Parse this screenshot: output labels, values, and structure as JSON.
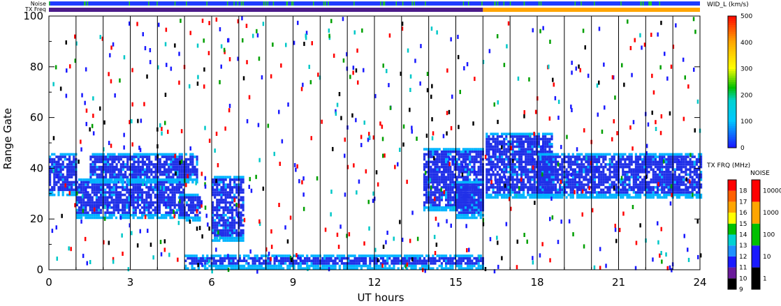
{
  "header": {
    "noise_label": "Noise",
    "txfreq_label": "TX Freq"
  },
  "chart_data": {
    "type": "heatmap",
    "xlabel": "UT hours",
    "ylabel": "Range Gate",
    "xlim": [
      0,
      24
    ],
    "ylim": [
      0,
      100
    ],
    "x_ticks": [
      0,
      3,
      6,
      9,
      12,
      15,
      18,
      21,
      24
    ],
    "y_ticks": [
      0,
      20,
      40,
      60,
      80,
      100
    ],
    "x_tick_labels": [
      "0",
      "3",
      "6",
      "9",
      "12",
      "15",
      "18",
      "21",
      "24"
    ],
    "y_tick_labels": [
      "0",
      "20",
      "40",
      "60",
      "80",
      "100"
    ],
    "scan_boundaries_hours": [
      1,
      2,
      3,
      4,
      5,
      6,
      7,
      8,
      9,
      10,
      11,
      12,
      13,
      14,
      15,
      16,
      17,
      18,
      19,
      20,
      21,
      22,
      23
    ],
    "tx_freq_bar": {
      "segments": [
        {
          "from": 0,
          "to": 16,
          "color": "#4b1a8a"
        },
        {
          "from": 16,
          "to": 24,
          "color": "#ffa500"
        }
      ]
    },
    "noise_bar": {
      "base_color": "#1e3cff",
      "accent_color": "#22cc22"
    },
    "echo_regions": [
      {
        "x0": 0.0,
        "x1": 1.0,
        "y0": 29,
        "y1": 46
      },
      {
        "x0": 1.0,
        "x1": 5.0,
        "y0": 20,
        "y1": 36
      },
      {
        "x0": 1.5,
        "x1": 5.5,
        "y0": 34,
        "y1": 46
      },
      {
        "x0": 4.8,
        "x1": 5.6,
        "y0": 19,
        "y1": 30
      },
      {
        "x0": 6.0,
        "x1": 7.2,
        "y0": 11,
        "y1": 37
      },
      {
        "x0": 13.8,
        "x1": 16.0,
        "y0": 23,
        "y1": 48
      },
      {
        "x0": 15.0,
        "x1": 16.0,
        "y0": 20,
        "y1": 35
      },
      {
        "x0": 16.1,
        "x1": 18.5,
        "y0": 28,
        "y1": 54
      },
      {
        "x0": 18.0,
        "x1": 24.0,
        "y0": 28,
        "y1": 46
      },
      {
        "x0": 5.0,
        "x1": 16.0,
        "y0": 0,
        "y1": 6
      }
    ],
    "width_colorbar": {
      "title": "WID_L (km/s)",
      "min": 0,
      "max": 500,
      "ticks": [
        0,
        100,
        200,
        300,
        400,
        500
      ],
      "tick_labels": [
        "0",
        "100",
        "200",
        "300",
        "400",
        "500"
      ]
    },
    "txfreq_colorbar": {
      "title": "TX FRQ (MHz)",
      "levels": [
        "9",
        "10",
        "11",
        "12",
        "13",
        "14",
        "15",
        "16",
        "17",
        "18"
      ],
      "colors": [
        "#000000",
        "#6a1b9a",
        "#1a1aff",
        "#1e90ff",
        "#00d2d2",
        "#00c000",
        "#ffff00",
        "#ffa500",
        "#ff6000",
        "#ff0000"
      ]
    },
    "noise_colorbar": {
      "title": "NOISE",
      "levels": [
        "1",
        "10",
        "100",
        "1000",
        "10000"
      ],
      "colors": [
        "#000000",
        "#1a1aff",
        "#00c000",
        "#ffa500",
        "#ff0000"
      ]
    },
    "colors": {
      "echo_core": "#2030e8",
      "echo_edge": "#00b4ff",
      "speckle": [
        "#ff0000",
        "#1a1aff",
        "#00c8c8",
        "#ff0000",
        "#1a1aff",
        "#00a000",
        "#000000"
      ]
    }
  }
}
